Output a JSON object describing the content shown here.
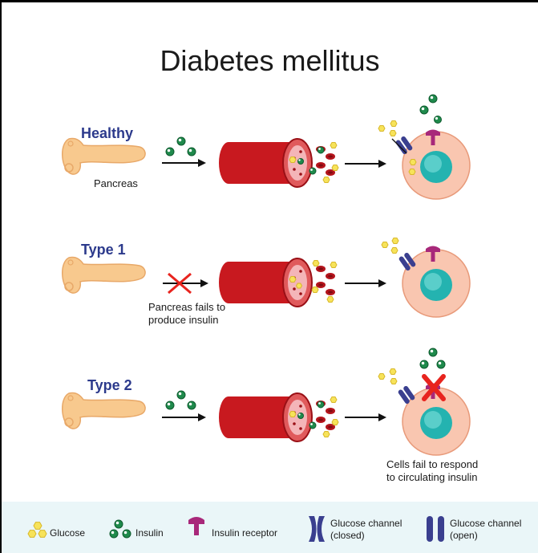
{
  "title": "Diabetes mellitus",
  "rows": [
    {
      "label": "Healthy",
      "pancreas_caption": "Pancreas"
    },
    {
      "label": "Type 1",
      "note": [
        "Pancreas fails to",
        "produce insulin"
      ]
    },
    {
      "label": "Type 2",
      "note": [
        "Cells fail to respond",
        "to circulating insulin"
      ]
    }
  ],
  "legend": {
    "glucose": "Glucose",
    "insulin": "Insulin",
    "receptor": "Insulin receptor",
    "channel_closed": [
      "Glucose channel",
      "(closed)"
    ],
    "channel_open": [
      "Glucose channel",
      "(open)"
    ]
  },
  "colors": {
    "glucose": "#f7e35a",
    "insulin": "#1f8a4c",
    "vessel": "#c8191f",
    "cell": "#f9c6b0",
    "nucleus": "#24b3b0",
    "receptor": "#a8287a",
    "channel": "#3a3f8f",
    "block": "#e8241e"
  }
}
